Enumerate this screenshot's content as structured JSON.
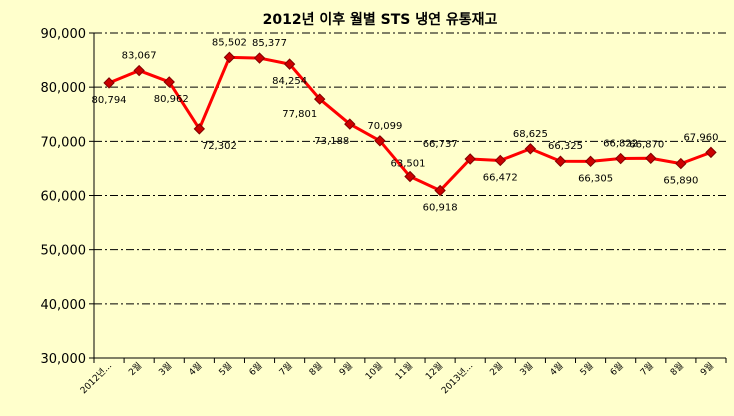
{
  "chart_data": {
    "type": "line",
    "title": "2012년 이후 월별 STS 냉연 유통재고",
    "xlabel": "",
    "ylabel": "",
    "ylim": [
      30000,
      90000
    ],
    "yticks": [
      30000,
      40000,
      50000,
      60000,
      70000,
      80000,
      90000
    ],
    "ytick_labels": [
      "30,000",
      "40,000",
      "50,000",
      "60,000",
      "70,000",
      "80,000",
      "90,000"
    ],
    "grid": true,
    "categories": [
      "2012년...",
      "2월",
      "3월",
      "4월",
      "5월",
      "6월",
      "7월",
      "8월",
      "9월",
      "10월",
      "11월",
      "12월",
      "2013년...",
      "2월",
      "3월",
      "4월",
      "5월",
      "6월",
      "7월",
      "8월",
      "9월"
    ],
    "series": [
      {
        "values": [
          80794,
          83067,
          80962,
          72302,
          85502,
          85377,
          84254,
          77801,
          73188,
          70099,
          63501,
          60918,
          66737,
          66472,
          68625,
          66325,
          66305,
          66822,
          66870,
          65890,
          67960
        ],
        "labels": [
          "80,794",
          "83,067",
          "80,962",
          "72,302",
          "85,502",
          "85,377",
          "84,254",
          "77,801",
          "73,188",
          "70,099",
          "63,501",
          "60,918",
          "66,737",
          "66,472",
          "68,625",
          "66,325",
          "66,305",
          "66,822",
          "66,870",
          "65,890",
          "67,960"
        ],
        "color": "#FF0000",
        "marker_color": "#CC0000"
      }
    ]
  }
}
